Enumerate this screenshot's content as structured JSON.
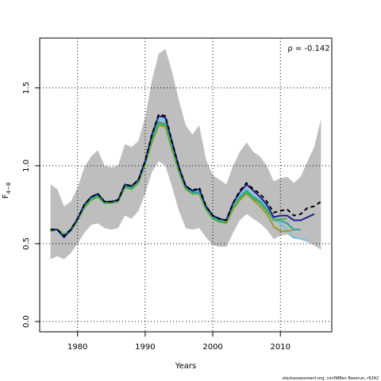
{
  "chart_data": {
    "type": "line",
    "annotation": "ρ = -0.142",
    "xlabel": "Years",
    "ylabel": "F",
    "ylabel_subscript": "4−8",
    "footer": "stockassessment.org, confWBen Baserun, r9242",
    "x": [
      1976,
      1977,
      1978,
      1979,
      1980,
      1981,
      1982,
      1983,
      1984,
      1985,
      1986,
      1987,
      1988,
      1989,
      1990,
      1991,
      1992,
      1993,
      1994,
      1995,
      1996,
      1997,
      1998,
      1999,
      2000,
      2001,
      2002,
      2003,
      2004,
      2005,
      2006,
      2007,
      2008,
      2009,
      2010,
      2011,
      2012,
      2013,
      2014,
      2015,
      2016
    ],
    "xlim": [
      1974.4,
      2017.6
    ],
    "xticks": [
      1980,
      1990,
      2000,
      2010
    ],
    "ylim": [
      -0.066,
      1.82
    ],
    "yticks": [
      {
        "value": 0,
        "label": "0.0"
      },
      0.5,
      {
        "value": 1,
        "label": "1.0"
      },
      1.5
    ],
    "grid": true,
    "band": {
      "color": "#bebebe",
      "upper": [
        0.88,
        0.85,
        0.74,
        0.77,
        0.86,
        0.99,
        1.06,
        1.1,
        1.0,
        0.99,
        1.0,
        1.14,
        1.12,
        1.16,
        1.31,
        1.55,
        1.72,
        1.75,
        1.6,
        1.42,
        1.26,
        1.2,
        1.26,
        1.04,
        0.94,
        0.91,
        0.88,
        1.0,
        1.09,
        1.15,
        1.09,
        1.06,
        1.0,
        0.9,
        0.92,
        0.93,
        0.89,
        0.93,
        1.03,
        1.12,
        1.3
      ],
      "lower": [
        0.4,
        0.42,
        0.4,
        0.44,
        0.5,
        0.57,
        0.62,
        0.63,
        0.6,
        0.59,
        0.6,
        0.68,
        0.66,
        0.71,
        0.82,
        0.96,
        1.03,
        1.0,
        0.86,
        0.71,
        0.6,
        0.59,
        0.6,
        0.54,
        0.49,
        0.48,
        0.48,
        0.57,
        0.65,
        0.69,
        0.66,
        0.63,
        0.59,
        0.53,
        0.55,
        0.56,
        0.53,
        0.53,
        0.51,
        0.49,
        0.46
      ]
    },
    "series": [
      {
        "color": "#6ec6e6",
        "values": [
          0.59,
          0.59,
          0.55,
          0.59,
          0.66,
          0.74,
          0.79,
          0.81,
          0.77,
          0.77,
          0.77,
          0.87,
          0.86,
          0.9,
          1.02,
          1.18,
          1.3,
          1.29,
          1.13,
          0.98,
          0.86,
          0.83,
          0.84,
          0.73,
          0.67,
          0.65,
          0.64,
          0.74,
          0.81,
          0.85,
          0.81,
          0.78,
          0.74,
          0.66,
          0.63,
          0.59,
          0.54,
          0.53,
          0.52,
          null,
          null
        ]
      },
      {
        "color": "#2aa198",
        "values": [
          0.59,
          0.59,
          0.56,
          0.59,
          0.66,
          0.74,
          0.79,
          0.81,
          0.77,
          0.77,
          0.77,
          0.87,
          0.86,
          0.9,
          1.02,
          1.17,
          1.28,
          1.27,
          1.12,
          0.97,
          0.86,
          0.83,
          0.83,
          0.73,
          0.67,
          0.65,
          0.64,
          0.73,
          0.8,
          0.84,
          0.8,
          0.77,
          0.72,
          0.65,
          0.65,
          0.63,
          0.59,
          0.59,
          null,
          null,
          null
        ]
      },
      {
        "color": "#9a9a2a",
        "values": [
          0.58,
          0.59,
          0.56,
          0.58,
          0.65,
          0.73,
          0.78,
          0.8,
          0.76,
          0.76,
          0.77,
          0.86,
          0.85,
          0.89,
          1.01,
          1.15,
          1.26,
          1.25,
          1.1,
          0.96,
          0.85,
          0.82,
          0.82,
          0.72,
          0.66,
          0.64,
          0.63,
          0.72,
          0.78,
          0.82,
          0.78,
          0.74,
          0.69,
          0.61,
          0.58,
          0.58,
          0.59,
          null,
          null,
          null,
          null
        ]
      },
      {
        "color": "#4caf50",
        "values": [
          0.58,
          0.59,
          0.56,
          0.58,
          0.65,
          0.73,
          0.78,
          0.8,
          0.76,
          0.76,
          0.77,
          0.86,
          0.85,
          0.89,
          1.01,
          1.16,
          1.27,
          1.26,
          1.11,
          0.96,
          0.85,
          0.82,
          0.82,
          0.72,
          0.66,
          0.64,
          0.64,
          0.73,
          0.79,
          0.83,
          0.79,
          0.76,
          0.71,
          0.65,
          0.66,
          0.66,
          null,
          null,
          null,
          null,
          null
        ]
      },
      {
        "color": "#1f1f8f",
        "values": [
          0.59,
          0.59,
          0.54,
          0.59,
          0.66,
          0.75,
          0.8,
          0.82,
          0.77,
          0.77,
          0.78,
          0.88,
          0.87,
          0.91,
          1.03,
          1.2,
          1.32,
          1.31,
          1.15,
          0.99,
          0.87,
          0.84,
          0.85,
          0.74,
          0.68,
          0.66,
          0.65,
          0.76,
          0.83,
          0.88,
          0.84,
          0.8,
          0.75,
          0.67,
          0.68,
          0.68,
          0.65,
          0.65,
          0.67,
          0.69,
          null
        ]
      },
      {
        "color": "#000000",
        "dashed": true,
        "values": [
          0.59,
          0.59,
          0.55,
          0.59,
          0.66,
          0.75,
          0.8,
          0.82,
          0.77,
          0.77,
          0.78,
          0.88,
          0.87,
          0.91,
          1.03,
          1.2,
          1.33,
          1.32,
          1.15,
          0.99,
          0.87,
          0.84,
          0.86,
          0.74,
          0.68,
          0.66,
          0.65,
          0.76,
          0.84,
          0.89,
          0.85,
          0.82,
          0.77,
          0.7,
          0.71,
          0.72,
          0.68,
          0.69,
          0.73,
          0.74,
          0.77
        ]
      }
    ]
  }
}
